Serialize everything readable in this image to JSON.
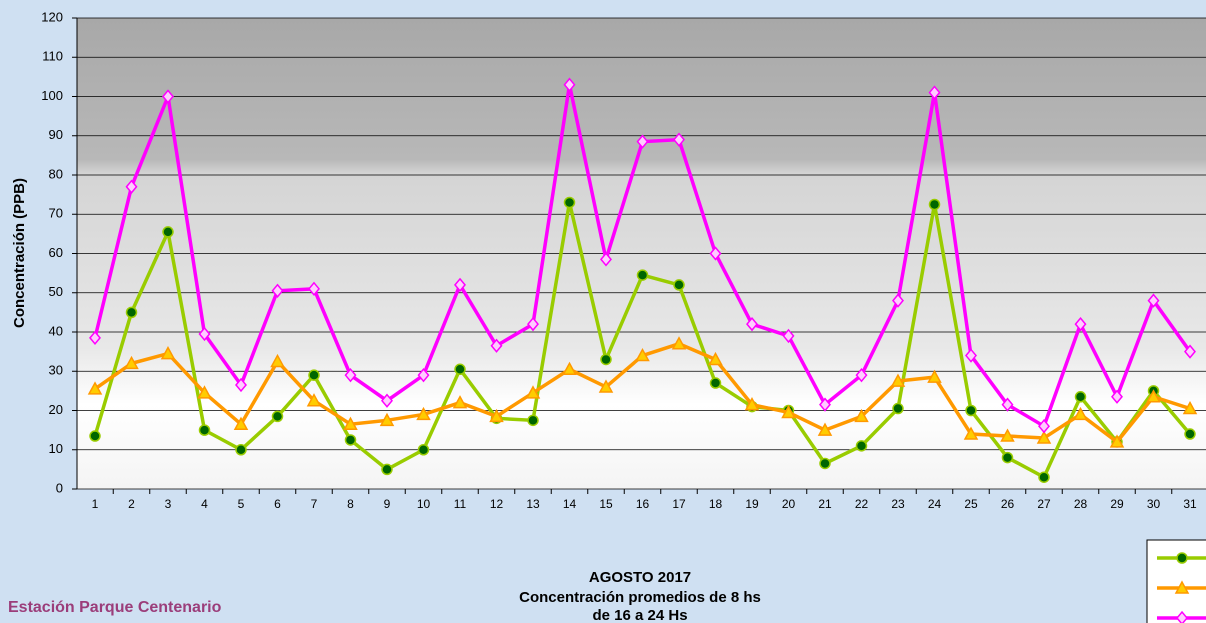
{
  "chart_data": {
    "type": "line",
    "title": "AGOSTO 2017",
    "subtitle": [
      "Concentración promedios de 8 hs",
      "de 16 a 24 Hs"
    ],
    "footer": "Estación Parque Centenario",
    "y_label": "Concentración  (PPB)",
    "categories": [
      "1",
      "2",
      "3",
      "4",
      "5",
      "6",
      "7",
      "8",
      "9",
      "10",
      "11",
      "12",
      "13",
      "14",
      "15",
      "16",
      "17",
      "18",
      "19",
      "20",
      "21",
      "22",
      "23",
      "24",
      "25",
      "26",
      "27",
      "28",
      "29",
      "30",
      "31"
    ],
    "series": [
      {
        "color": "#99cc00",
        "marker": "circle",
        "marker_fill": "#006600",
        "values": [
          13.5,
          45,
          65.5,
          15,
          10,
          18.5,
          29,
          12.5,
          5,
          10,
          30.5,
          18,
          17.5,
          73,
          33,
          54.5,
          52,
          27,
          21,
          20,
          6.5,
          11,
          20.5,
          72.5,
          20,
          8,
          3,
          23.5,
          12,
          25,
          14
        ]
      },
      {
        "color": "#ff9900",
        "marker": "triangle",
        "marker_fill": "#ffcc00",
        "values": [
          25.5,
          32,
          34.5,
          24.5,
          16.5,
          32.5,
          22.5,
          16.5,
          17.5,
          19,
          22,
          18.5,
          24.5,
          30.5,
          26,
          34,
          37,
          33,
          21.5,
          19.5,
          15,
          18.5,
          27.5,
          28.5,
          14,
          13.5,
          13,
          19,
          12,
          23.5,
          20.5
        ]
      },
      {
        "color": "#ff00ff",
        "marker": "diamond",
        "marker_fill": "#ffccff",
        "values": [
          38.5,
          77,
          100,
          39.5,
          26.5,
          50.5,
          51,
          29,
          22.5,
          29,
          52,
          36.5,
          42,
          103,
          58.5,
          88.5,
          89,
          60,
          42,
          39,
          21.5,
          29,
          48,
          101,
          34,
          21.5,
          16,
          42,
          23.5,
          48,
          35
        ]
      }
    ],
    "ylim": [
      0,
      120
    ],
    "yticks": [
      0,
      10,
      20,
      30,
      40,
      50,
      60,
      70,
      80,
      90,
      100,
      110,
      120
    ],
    "grid": true
  }
}
